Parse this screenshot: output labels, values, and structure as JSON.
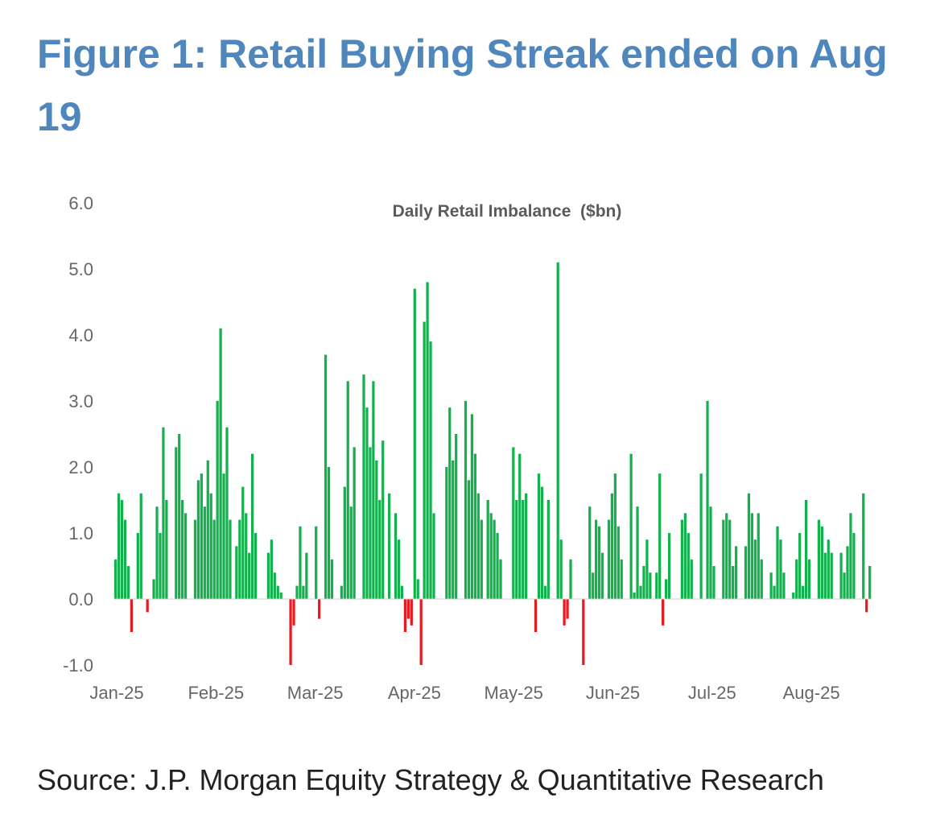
{
  "figure": {
    "title": "Figure 1: Retail Buying Streak ended on Aug 19",
    "source": "Source: J.P. Morgan Equity Strategy & Quantitative Research"
  },
  "colors": {
    "title": "#4f87bd",
    "positive": "#14b04e",
    "negative": "#e8191f"
  },
  "chart_data": {
    "type": "bar",
    "title": "Daily Retail Imbalance  ($bn)",
    "xlabel": "",
    "ylabel": "",
    "ylim": [
      -1.0,
      6.0
    ],
    "yticks": [
      -1.0,
      0.0,
      1.0,
      2.0,
      3.0,
      4.0,
      5.0,
      6.0
    ],
    "ytick_labels": [
      "-1.0",
      "0.0",
      "1.0",
      "2.0",
      "3.0",
      "4.0",
      "5.0",
      "6.0"
    ],
    "xtick_labels": [
      "Jan-25",
      "Feb-25",
      "Mar-25",
      "Apr-25",
      "May-25",
      "Jun-25",
      "Jul-25",
      "Aug-25"
    ],
    "grid": false,
    "legend": "none",
    "series": [
      {
        "values": [
          0.6,
          1.6,
          1.5,
          1.2,
          0.5,
          -0.5,
          0.0,
          1.0,
          1.6,
          0.0,
          -0.2,
          0.0,
          0.3,
          1.4,
          1.0,
          2.6,
          1.5,
          0.0,
          0.0,
          2.3,
          2.5,
          1.5,
          1.3,
          0.0,
          0.0,
          1.2,
          1.8,
          1.9,
          1.4,
          2.1,
          1.6,
          1.2,
          3.0,
          4.1,
          1.9,
          2.6,
          1.2,
          0.0,
          0.8,
          1.2,
          1.7,
          1.3,
          0.7,
          2.2,
          1.0,
          0.0,
          0.0,
          0.0,
          0.7,
          0.9,
          0.4,
          0.2,
          0.1,
          0.0,
          0.0,
          -1.0,
          -0.4,
          0.2,
          1.1,
          0.2,
          0.7,
          0.0,
          0.0,
          1.1,
          -0.3,
          0.0,
          3.7,
          2.0,
          0.6,
          0.0,
          0.0,
          0.2,
          1.7,
          3.3,
          1.4,
          2.3,
          0.0,
          0.0,
          3.4,
          2.9,
          2.3,
          3.3,
          2.1,
          1.5,
          2.4,
          0.0,
          1.6,
          0.0,
          1.3,
          0.9,
          0.2,
          -0.5,
          -0.3,
          -0.4,
          4.7,
          0.3,
          -1.0,
          4.2,
          4.8,
          3.9,
          1.3,
          0.0,
          0.0,
          0.0,
          2.0,
          2.9,
          2.1,
          2.5,
          0.0,
          0.0,
          3.0,
          1.8,
          2.8,
          2.2,
          1.6,
          1.2,
          0.0,
          1.5,
          1.3,
          1.2,
          1.0,
          0.6,
          0.0,
          0.0,
          0.0,
          2.3,
          1.5,
          2.2,
          1.5,
          1.6,
          0.0,
          0.0,
          -0.5,
          1.9,
          1.7,
          0.2,
          1.5,
          0.0,
          0.0,
          5.1,
          0.9,
          -0.4,
          -0.3,
          0.6,
          0.0,
          0.0,
          0.0,
          -1.0,
          0.0,
          1.4,
          0.4,
          1.2,
          1.1,
          0.7,
          0.0,
          1.2,
          1.6,
          1.9,
          1.1,
          0.6,
          0.0,
          0.0,
          2.2,
          0.1,
          1.4,
          0.2,
          0.5,
          0.9,
          0.4,
          0.0,
          0.4,
          1.9,
          -0.4,
          0.3,
          1.0,
          0.0,
          0.0,
          0.0,
          1.2,
          1.3,
          1.0,
          0.6,
          0.0,
          0.0,
          1.9,
          0.0,
          3.0,
          1.4,
          0.5,
          0.0,
          0.0,
          1.2,
          1.3,
          1.2,
          0.5,
          0.8,
          0.0,
          0.0,
          0.8,
          1.6,
          1.3,
          0.9,
          1.3,
          0.6,
          0.0,
          0.0,
          0.4,
          0.2,
          1.1,
          0.9,
          0.4,
          0.0,
          0.0,
          0.1,
          0.6,
          1.0,
          0.2,
          1.5,
          0.6,
          0.0,
          0.0,
          1.2,
          1.1,
          0.7,
          0.9,
          0.7,
          0.0,
          0.0,
          0.7,
          0.4,
          0.8,
          1.3,
          1.0,
          0.0,
          0.0,
          1.6,
          -0.2,
          0.5
        ]
      }
    ]
  }
}
